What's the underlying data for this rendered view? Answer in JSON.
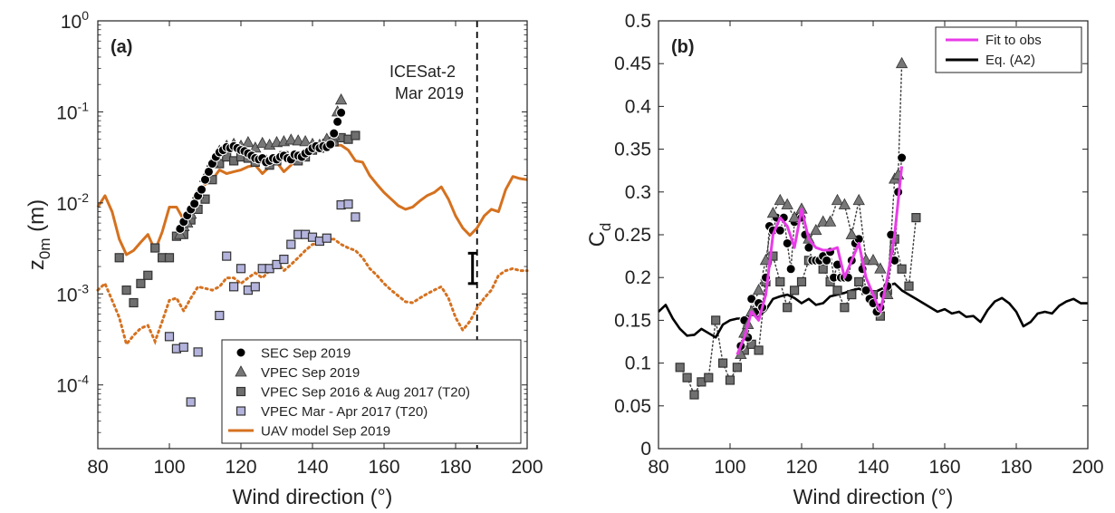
{
  "chart_data": [
    {
      "panel": "(a)",
      "type": "scatter",
      "xlabel": "Wind direction (°)",
      "ylabel": "z0m (m)",
      "ylabel_main": "z",
      "ylabel_sub": "0m",
      "ylabel_unit": " (m)",
      "xlim": [
        80,
        200
      ],
      "ylim": [
        2e-05,
        1
      ],
      "yscale": "log",
      "xticks": [
        "80",
        "100",
        "120",
        "140",
        "160",
        "180",
        "200"
      ],
      "yticks": [
        {
          "base": "10",
          "exp": "0",
          "value": 1
        },
        {
          "base": "10",
          "exp": "-1",
          "value": 0.1
        },
        {
          "base": "10",
          "exp": "-2",
          "value": 0.01
        },
        {
          "base": "10",
          "exp": "-3",
          "value": 0.001
        },
        {
          "base": "10",
          "exp": "-4",
          "value": 0.0001
        }
      ],
      "annotation": {
        "line1": "ICESat-2",
        "line2": "Mar 2019",
        "x": 186,
        "errorbar": [
          0.0013,
          0.0028
        ]
      },
      "legend_position": "bottom-right",
      "series": [
        {
          "name": "SEC Sep 2019",
          "marker": "circle",
          "color": "#000000",
          "x": [
            103,
            104,
            105,
            106,
            107,
            108,
            109,
            110,
            111,
            112,
            113,
            114,
            115,
            116,
            117,
            118,
            119,
            120,
            121,
            122,
            123,
            124,
            125,
            126,
            127,
            128,
            129,
            130,
            131,
            132,
            133,
            134,
            135,
            136,
            137,
            138,
            139,
            140,
            141,
            142,
            143,
            144,
            145,
            146,
            147,
            148
          ],
          "y": [
            0.0052,
            0.0062,
            0.0073,
            0.0085,
            0.0098,
            0.012,
            0.014,
            0.018,
            0.022,
            0.027,
            0.032,
            0.036,
            0.038,
            0.041,
            0.04,
            0.042,
            0.04,
            0.038,
            0.037,
            0.035,
            0.033,
            0.031,
            0.03,
            0.031,
            0.028,
            0.029,
            0.031,
            0.03,
            0.032,
            0.033,
            0.031,
            0.03,
            0.034,
            0.033,
            0.032,
            0.035,
            0.037,
            0.04,
            0.042,
            0.04,
            0.042,
            0.041,
            0.044,
            0.058,
            0.078,
            0.098
          ]
        },
        {
          "name": "VPEC Sep 2019",
          "marker": "triangle",
          "color": "#777777",
          "x": [
            103,
            104,
            105,
            106,
            108,
            110,
            112,
            114,
            116,
            118,
            120,
            122,
            124,
            126,
            128,
            130,
            132,
            134,
            136,
            138,
            140,
            142,
            144,
            146,
            147,
            148
          ],
          "y": [
            0.0045,
            0.0055,
            0.006,
            0.0075,
            0.0125,
            0.019,
            0.028,
            0.037,
            0.042,
            0.044,
            0.042,
            0.046,
            0.04,
            0.045,
            0.043,
            0.046,
            0.047,
            0.049,
            0.048,
            0.047,
            0.044,
            0.043,
            0.05,
            0.055,
            0.1,
            0.135
          ]
        },
        {
          "name": "VPEC Sep 2016 & Aug 2017 (T20)",
          "marker": "square",
          "color": "#6f6f6f",
          "x": [
            86,
            88,
            90,
            92,
            94,
            96,
            98,
            100,
            102,
            104,
            106,
            108,
            110,
            112,
            114,
            116,
            118,
            120,
            122,
            124,
            126,
            128,
            130,
            132,
            134,
            136,
            138,
            140,
            142,
            144,
            146,
            148,
            150,
            152
          ],
          "y": [
            0.0025,
            0.0011,
            0.0008,
            0.0013,
            0.0016,
            0.0032,
            0.0025,
            0.0025,
            0.0043,
            0.0045,
            0.0065,
            0.0085,
            0.011,
            0.018,
            0.027,
            0.032,
            0.029,
            0.032,
            0.031,
            0.028,
            0.03,
            0.026,
            0.029,
            0.033,
            0.031,
            0.029,
            0.032,
            0.038,
            0.04,
            0.045,
            0.047,
            0.052,
            0.05,
            0.055
          ]
        },
        {
          "name": "VPEC Mar - Apr 2017 (T20)",
          "marker": "square",
          "color": "#b3b3dd",
          "x": [
            100,
            102,
            104,
            106,
            108,
            114,
            116,
            118,
            120,
            122,
            124,
            126,
            128,
            130,
            132,
            134,
            136,
            138,
            140,
            142,
            144,
            148,
            150,
            152
          ],
          "y": [
            0.00034,
            0.00025,
            0.00026,
            6.5e-05,
            0.00023,
            0.00058,
            0.0026,
            0.0012,
            0.0019,
            0.0011,
            0.0012,
            0.0019,
            0.0019,
            0.0021,
            0.0024,
            0.0035,
            0.0045,
            0.0045,
            0.0042,
            0.0038,
            0.0041,
            0.0095,
            0.0097,
            0.007
          ]
        },
        {
          "name": "UAV model Sep 2019",
          "marker": "line",
          "color": "#d5711f",
          "x": [
            80,
            82,
            84,
            86,
            88,
            90,
            92,
            94,
            96,
            98,
            100,
            102,
            104,
            106,
            108,
            110,
            112,
            114,
            116,
            118,
            120,
            122,
            124,
            126,
            128,
            130,
            132,
            134,
            136,
            138,
            140,
            142,
            144,
            146,
            148,
            150,
            152,
            154,
            156,
            158,
            160,
            162,
            164,
            166,
            168,
            170,
            172,
            174,
            176,
            178,
            180,
            182,
            184,
            186,
            188,
            190,
            192,
            194,
            196,
            198,
            200
          ],
          "y": [
            0.009,
            0.012,
            0.008,
            0.004,
            0.0027,
            0.003,
            0.0037,
            0.0045,
            0.003,
            0.0048,
            0.009,
            0.009,
            0.0065,
            0.0095,
            0.013,
            0.016,
            0.018,
            0.023,
            0.021,
            0.022,
            0.023,
            0.025,
            0.026,
            0.021,
            0.025,
            0.028,
            0.022,
            0.026,
            0.031,
            0.034,
            0.039,
            0.04,
            0.045,
            0.043,
            0.043,
            0.038,
            0.029,
            0.028,
            0.02,
            0.016,
            0.013,
            0.011,
            0.0093,
            0.0085,
            0.009,
            0.0105,
            0.012,
            0.013,
            0.015,
            0.011,
            0.0072,
            0.0053,
            0.0044,
            0.0053,
            0.0072,
            0.0085,
            0.008,
            0.014,
            0.0195,
            0.0185,
            0.018
          ]
        },
        {
          "name": "",
          "marker": "dotted",
          "color": "#d5711f",
          "x": [
            80,
            82,
            84,
            86,
            88,
            90,
            92,
            94,
            96,
            98,
            100,
            102,
            104,
            106,
            108,
            110,
            112,
            114,
            116,
            118,
            120,
            122,
            124,
            126,
            128,
            130,
            132,
            134,
            136,
            138,
            140,
            142,
            144,
            146,
            148,
            150,
            152,
            154,
            156,
            158,
            160,
            162,
            164,
            166,
            168,
            170,
            172,
            174,
            176,
            178,
            180,
            182,
            184,
            186,
            188,
            190,
            192,
            194,
            196,
            198,
            200
          ],
          "y": [
            0.0011,
            0.0013,
            0.00085,
            0.00055,
            0.00028,
            0.00035,
            0.00042,
            0.00045,
            0.0003,
            0.0005,
            0.00085,
            0.0009,
            0.00065,
            0.0009,
            0.0012,
            0.00115,
            0.0011,
            0.0012,
            0.0015,
            0.0015,
            0.0013,
            0.0015,
            0.0017,
            0.0015,
            0.0018,
            0.0023,
            0.0018,
            0.0021,
            0.0025,
            0.003,
            0.0035,
            0.0036,
            0.004,
            0.004,
            0.0035,
            0.0032,
            0.003,
            0.0025,
            0.0019,
            0.0016,
            0.0013,
            0.0011,
            0.00095,
            0.00082,
            0.0008,
            0.0009,
            0.001,
            0.0011,
            0.0012,
            0.0009,
            0.00055,
            0.0004,
            0.0005,
            0.0007,
            0.0009,
            0.0011,
            0.0016,
            0.0018,
            0.0019,
            0.0018,
            0.0018
          ]
        }
      ]
    },
    {
      "panel": "(b)",
      "type": "line",
      "xlabel": "Wind direction (°)",
      "ylabel": "Cd",
      "ylabel_main": "C",
      "ylabel_sub": "d",
      "xlim": [
        80,
        200
      ],
      "ylim": [
        0,
        0.5
      ],
      "xticks": [
        "80",
        "100",
        "120",
        "140",
        "160",
        "180",
        "200"
      ],
      "yticks": [
        "0",
        "0.05",
        "0.1",
        "0.15",
        "0.2",
        "0.25",
        "0.3",
        "0.35",
        "0.4",
        "0.45",
        "0.5"
      ],
      "legend_position": "top-right",
      "series": [
        {
          "name": "SEC Sep 2019",
          "marker": "circle",
          "color": "#000000",
          "connector": "dotted",
          "x": [
            103,
            104,
            105,
            106,
            107,
            108,
            109,
            110,
            111,
            112,
            113,
            114,
            115,
            116,
            117,
            118,
            119,
            120,
            121,
            122,
            123,
            124,
            125,
            126,
            127,
            128,
            129,
            130,
            131,
            132,
            133,
            134,
            135,
            136,
            137,
            138,
            139,
            140,
            141,
            142,
            143,
            144,
            145,
            146,
            147,
            148
          ],
          "y": [
            0.12,
            0.15,
            0.13,
            0.175,
            0.16,
            0.17,
            0.165,
            0.2,
            0.26,
            0.255,
            0.27,
            0.255,
            0.27,
            0.24,
            0.21,
            0.265,
            0.27,
            0.27,
            0.25,
            0.235,
            0.22,
            0.22,
            0.22,
            0.225,
            0.22,
            0.23,
            0.2,
            0.215,
            0.2,
            0.2,
            0.2,
            0.22,
            0.24,
            0.245,
            0.21,
            0.185,
            0.175,
            0.17,
            0.16,
            0.165,
            0.18,
            0.19,
            0.25,
            0.22,
            0.3,
            0.34
          ]
        },
        {
          "name": "VPEC Sep 2019",
          "marker": "triangle",
          "color": "#777777",
          "connector": "dotted",
          "x": [
            103,
            104,
            105,
            106,
            108,
            110,
            112,
            114,
            116,
            118,
            120,
            122,
            124,
            126,
            128,
            130,
            132,
            134,
            136,
            138,
            140,
            142,
            144,
            146,
            147,
            148
          ],
          "y": [
            0.11,
            0.135,
            0.145,
            0.16,
            0.185,
            0.22,
            0.275,
            0.29,
            0.285,
            0.27,
            0.28,
            0.245,
            0.255,
            0.265,
            0.265,
            0.29,
            0.285,
            0.25,
            0.29,
            0.22,
            0.22,
            0.21,
            0.18,
            0.315,
            0.32,
            0.45
          ]
        },
        {
          "name": "VPEC Sep 2016 & Aug 2017 (T20)",
          "marker": "square",
          "color": "#6f6f6f",
          "connector": "dotted",
          "x": [
            86,
            88,
            90,
            92,
            94,
            96,
            98,
            100,
            102,
            104,
            106,
            108,
            110,
            112,
            114,
            116,
            118,
            120,
            122,
            124,
            126,
            128,
            130,
            132,
            134,
            136,
            138,
            140,
            142,
            144,
            146,
            148,
            150,
            152
          ],
          "y": [
            0.095,
            0.083,
            0.063,
            0.078,
            0.083,
            0.15,
            0.1,
            0.08,
            0.095,
            0.115,
            0.122,
            0.115,
            0.195,
            0.225,
            0.195,
            0.165,
            0.185,
            0.195,
            0.22,
            0.22,
            0.21,
            0.195,
            0.185,
            0.165,
            0.18,
            0.195,
            0.185,
            0.18,
            0.155,
            0.185,
            0.245,
            0.21,
            0.19,
            0.27
          ]
        },
        {
          "name": "Fit to obs",
          "marker": "line",
          "color": "#e83be8",
          "x": [
            102,
            104,
            106,
            108,
            110,
            112,
            114,
            116,
            118,
            120,
            122,
            124,
            126,
            128,
            130,
            132,
            134,
            136,
            138,
            140,
            142,
            144,
            146,
            148
          ],
          "y": [
            0.11,
            0.13,
            0.16,
            0.15,
            0.18,
            0.25,
            0.27,
            0.26,
            0.235,
            0.28,
            0.245,
            0.235,
            0.232,
            0.232,
            0.235,
            0.2,
            0.22,
            0.24,
            0.2,
            0.18,
            0.16,
            0.2,
            0.25,
            0.33
          ]
        },
        {
          "name": "Eq. (A2)",
          "marker": "line",
          "color": "#000000",
          "x": [
            80,
            82,
            84,
            86,
            88,
            90,
            92,
            94,
            96,
            98,
            100,
            102,
            104,
            106,
            108,
            110,
            112,
            114,
            116,
            118,
            120,
            122,
            124,
            126,
            128,
            130,
            132,
            134,
            136,
            138,
            140,
            142,
            144,
            146,
            148,
            150,
            152,
            154,
            156,
            158,
            160,
            162,
            164,
            166,
            168,
            170,
            172,
            174,
            176,
            178,
            180,
            182,
            184,
            186,
            188,
            190,
            192,
            194,
            196,
            198,
            200
          ],
          "y": [
            0.16,
            0.168,
            0.152,
            0.14,
            0.132,
            0.133,
            0.14,
            0.135,
            0.13,
            0.145,
            0.15,
            0.152,
            0.152,
            0.157,
            0.155,
            0.162,
            0.175,
            0.178,
            0.18,
            0.176,
            0.17,
            0.175,
            0.168,
            0.17,
            0.178,
            0.18,
            0.182,
            0.185,
            0.187,
            0.183,
            0.182,
            0.186,
            0.19,
            0.193,
            0.185,
            0.18,
            0.175,
            0.17,
            0.165,
            0.16,
            0.163,
            0.158,
            0.16,
            0.154,
            0.155,
            0.148,
            0.162,
            0.172,
            0.176,
            0.17,
            0.16,
            0.143,
            0.148,
            0.158,
            0.16,
            0.158,
            0.167,
            0.172,
            0.175,
            0.17,
            0.17
          ]
        }
      ]
    }
  ]
}
